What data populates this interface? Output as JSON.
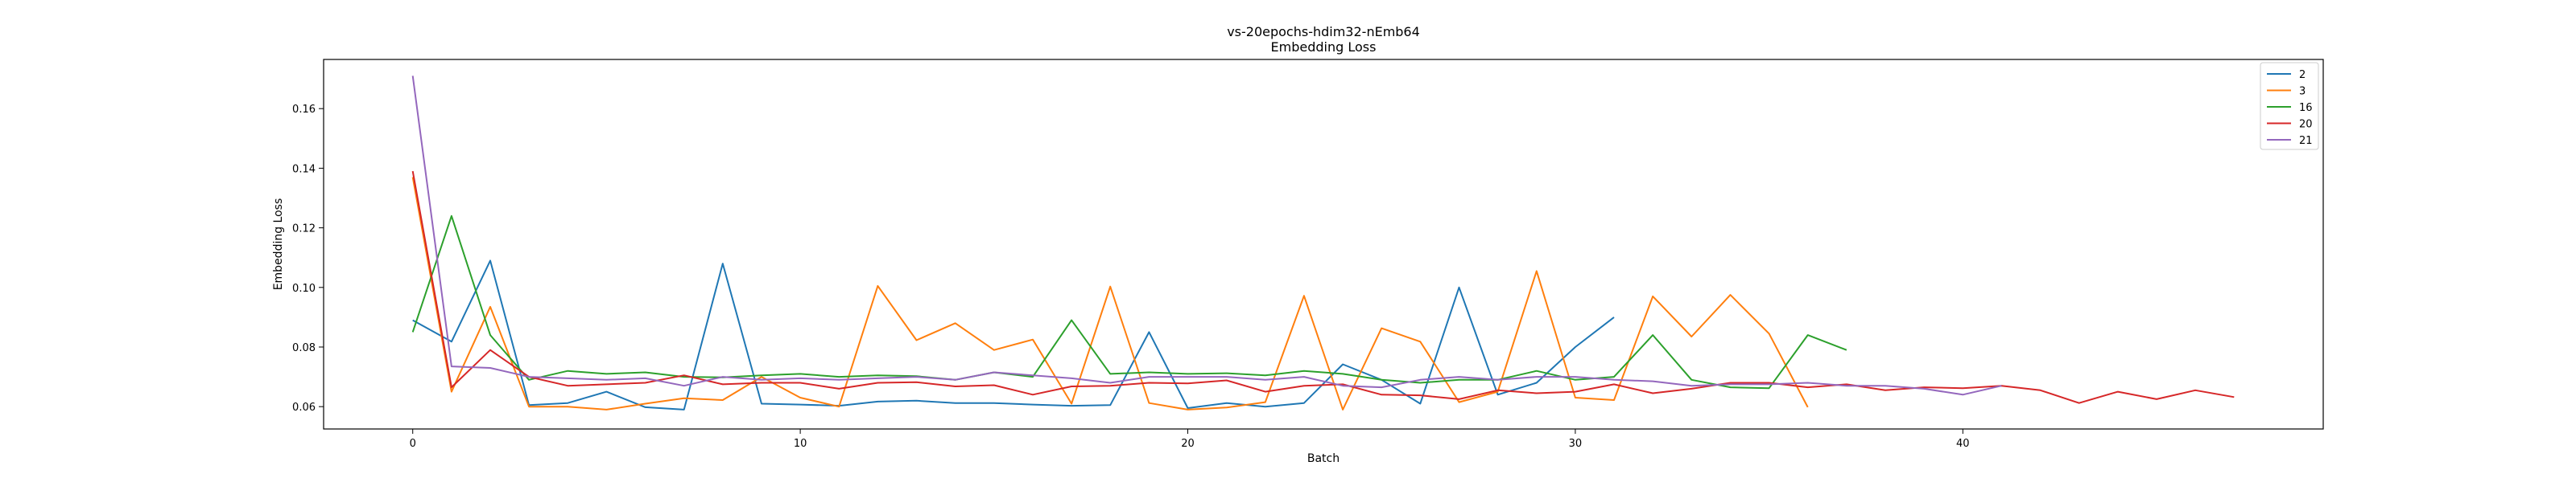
{
  "chart_data": {
    "type": "line",
    "title": "vs-20epochs-hdim32-nEmb64",
    "subtitle": "Embedding Loss",
    "xlabel": "Batch",
    "ylabel": "Embedding Loss",
    "xlim": [
      -2.3,
      49.3
    ],
    "ylim": [
      0.0525,
      0.1765
    ],
    "xticks": [
      0,
      10,
      20,
      30,
      40
    ],
    "yticks": [
      0.06,
      0.08,
      0.1,
      0.12,
      0.14,
      0.16
    ],
    "ytick_labels": [
      "0.06",
      "0.08",
      "0.10",
      "0.12",
      "0.14",
      "0.16"
    ],
    "legend_position": "top-right",
    "grid": false,
    "series": [
      {
        "name": "2",
        "color": "#1f77b4",
        "values": [
          0.089,
          0.0818,
          0.109,
          0.0605,
          0.0612,
          0.065,
          0.0598,
          0.059,
          0.108,
          0.061,
          0.0607,
          0.0603,
          0.0617,
          0.062,
          0.0612,
          0.0612,
          0.0607,
          0.0603,
          0.0605,
          0.085,
          0.0595,
          0.0612,
          0.06,
          0.0612,
          0.0742,
          0.069,
          0.061,
          0.1,
          0.064,
          0.068,
          0.08,
          0.09
        ]
      },
      {
        "name": "3",
        "color": "#ff7f0e",
        "values": [
          0.137,
          0.065,
          0.0935,
          0.06,
          0.06,
          0.059,
          0.061,
          0.0628,
          0.0622,
          0.07,
          0.063,
          0.06,
          0.1005,
          0.0823,
          0.088,
          0.079,
          0.0825,
          0.061,
          0.1003,
          0.0612,
          0.059,
          0.0597,
          0.0615,
          0.0972,
          0.059,
          0.0863,
          0.0818,
          0.0615,
          0.065,
          0.1055,
          0.063,
          0.0622,
          0.097,
          0.0835,
          0.0975,
          0.0845,
          0.0598
        ]
      },
      {
        "name": "16",
        "color": "#2ca02c",
        "values": [
          0.085,
          0.124,
          0.084,
          0.069,
          0.072,
          0.071,
          0.0715,
          0.07,
          0.0698,
          0.0705,
          0.071,
          0.07,
          0.0705,
          0.0702,
          0.069,
          0.0715,
          0.07,
          0.089,
          0.071,
          0.0715,
          0.071,
          0.0712,
          0.0705,
          0.072,
          0.071,
          0.069,
          0.068,
          0.069,
          0.069,
          0.072,
          0.069,
          0.07,
          0.084,
          0.069,
          0.0665,
          0.0662,
          0.084,
          0.079
        ]
      },
      {
        "name": "20",
        "color": "#d62728",
        "values": [
          0.139,
          0.0665,
          0.079,
          0.07,
          0.067,
          0.0675,
          0.068,
          0.0705,
          0.0675,
          0.068,
          0.068,
          0.066,
          0.068,
          0.0682,
          0.0668,
          0.0672,
          0.064,
          0.0668,
          0.067,
          0.068,
          0.0678,
          0.0688,
          0.065,
          0.067,
          0.0675,
          0.064,
          0.0638,
          0.0625,
          0.0655,
          0.0645,
          0.065,
          0.0675,
          0.0645,
          0.066,
          0.068,
          0.068,
          0.0665,
          0.0675,
          0.0655,
          0.0665,
          0.0662,
          0.067,
          0.0655,
          0.0612,
          0.065,
          0.0625,
          0.0655,
          0.0632
        ]
      },
      {
        "name": "21",
        "color": "#9467bd",
        "values": [
          0.171,
          0.0735,
          0.073,
          0.07,
          0.0695,
          0.069,
          0.0695,
          0.067,
          0.07,
          0.069,
          0.0695,
          0.069,
          0.0695,
          0.07,
          0.069,
          0.0715,
          0.0705,
          0.0695,
          0.068,
          0.07,
          0.07,
          0.07,
          0.069,
          0.07,
          0.067,
          0.0665,
          0.069,
          0.07,
          0.069,
          0.07,
          0.07,
          0.069,
          0.0685,
          0.067,
          0.0675,
          0.0675,
          0.068,
          0.067,
          0.067,
          0.066,
          0.064,
          0.067
        ]
      }
    ]
  }
}
